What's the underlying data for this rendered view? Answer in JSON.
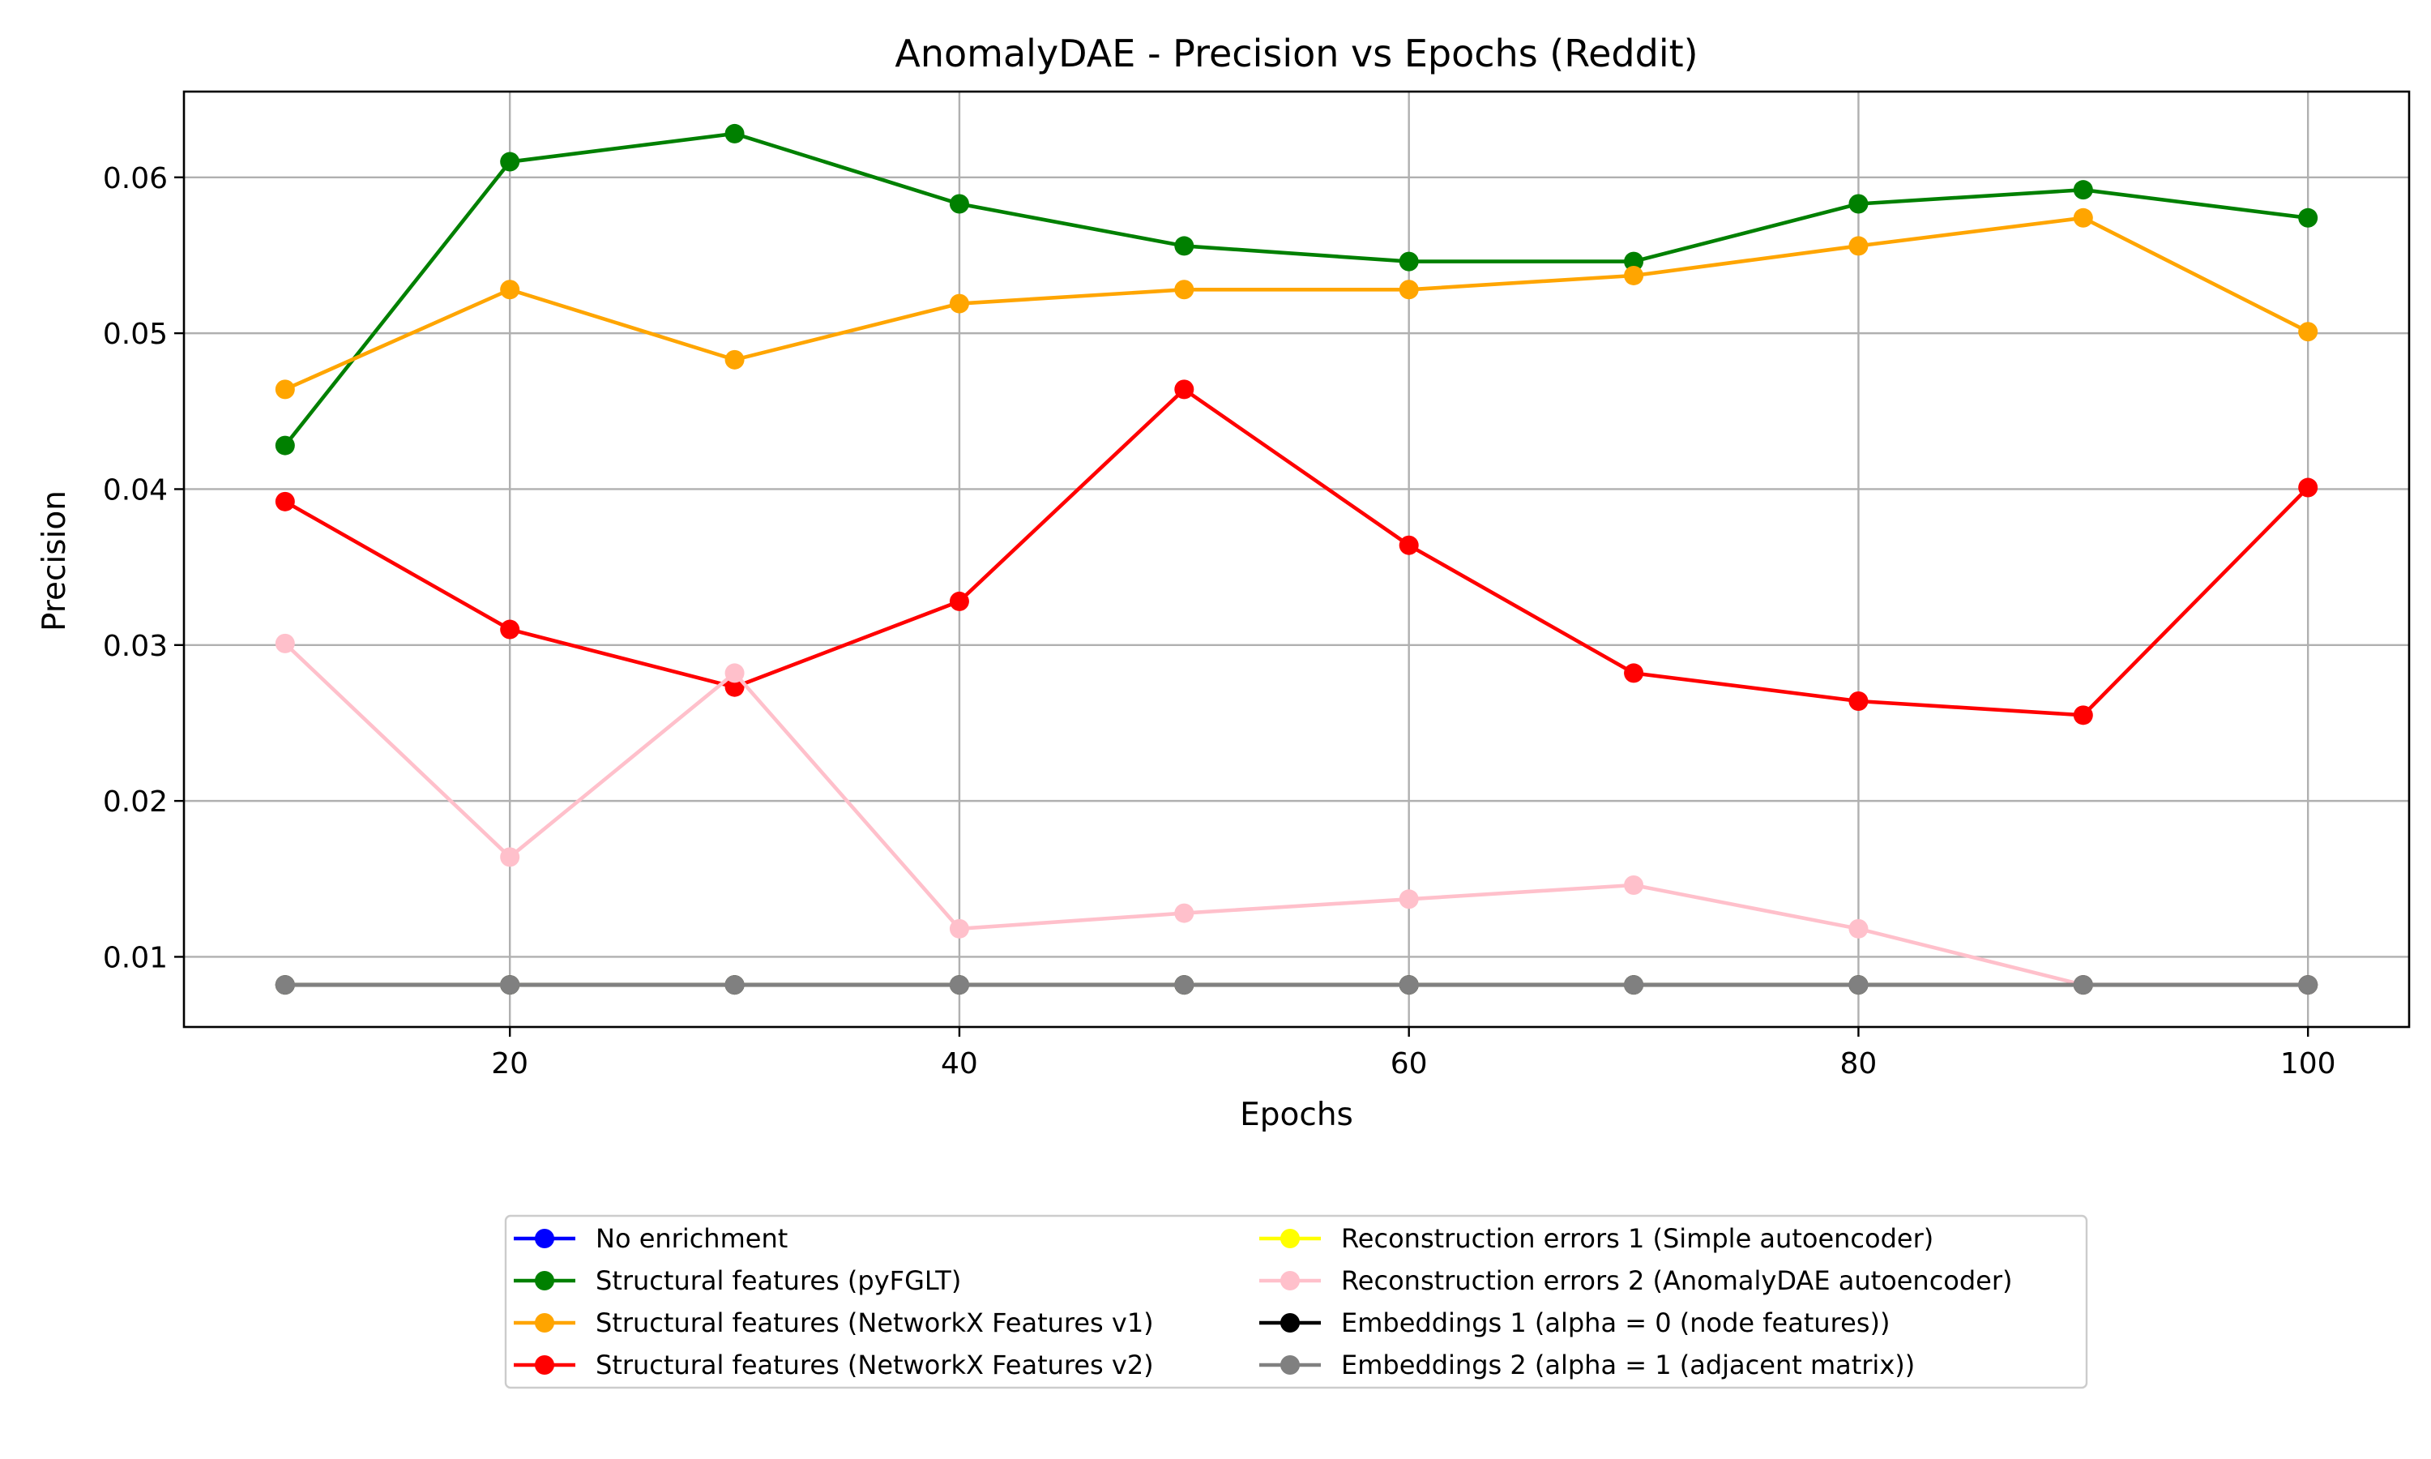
{
  "chart_data": {
    "type": "line",
    "title": "AnomalyDAE - Precision vs Epochs (Reddit)",
    "xlabel": "Epochs",
    "ylabel": "Precision",
    "xlim": [
      5.5,
      104.5
    ],
    "ylim": [
      0.0055,
      0.0655
    ],
    "xticks": [
      20,
      40,
      60,
      80,
      100
    ],
    "yticks": [
      0.01,
      0.02,
      0.03,
      0.04,
      0.05,
      0.06
    ],
    "ytick_labels": [
      "0.01",
      "0.02",
      "0.03",
      "0.04",
      "0.05",
      "0.06"
    ],
    "grid": true,
    "legend_position": "bottom-center",
    "x": [
      10,
      20,
      30,
      40,
      50,
      60,
      70,
      80,
      90,
      100
    ],
    "series": [
      {
        "name": "No enrichment",
        "color": "#0000ff",
        "values": [
          0.0082,
          0.0082,
          0.0082,
          0.0082,
          0.0082,
          0.0082,
          0.0082,
          0.0082,
          0.0082,
          0.0082
        ]
      },
      {
        "name": "Structural features (pyFGLT)",
        "color": "#008000",
        "values": [
          0.0428,
          0.061,
          0.0628,
          0.0583,
          0.0556,
          0.0546,
          0.0546,
          0.0583,
          0.0592,
          0.0574
        ]
      },
      {
        "name": "Structural features (NetworkX Features v1)",
        "color": "#ffa500",
        "values": [
          0.0464,
          0.0528,
          0.0483,
          0.0519,
          0.0528,
          0.0528,
          0.0537,
          0.0556,
          0.0574,
          0.0501
        ]
      },
      {
        "name": "Structural features (NetworkX Features v2)",
        "color": "#ff0000",
        "values": [
          0.0392,
          0.031,
          0.0273,
          0.0328,
          0.0464,
          0.0364,
          0.0282,
          0.0264,
          0.0255,
          0.0401
        ]
      },
      {
        "name": "Reconstruction errors 1 (Simple autoencoder)",
        "color": "#ffff00",
        "values": [
          0.0082,
          0.0082,
          0.0082,
          0.0082,
          0.0082,
          0.0082,
          0.0082,
          0.0082,
          0.0082,
          0.0082
        ]
      },
      {
        "name": "Reconstruction errors 2 (AnomalyDAE autoencoder)",
        "color": "#ffc0cb",
        "values": [
          0.0301,
          0.0164,
          0.0282,
          0.0118,
          0.0128,
          0.0137,
          0.0146,
          0.0118,
          0.0082,
          0.0082
        ]
      },
      {
        "name": "Embeddings 1 (alpha = 0 (node features))",
        "color": "#000000",
        "values": [
          0.0082,
          0.0082,
          0.0082,
          0.0082,
          0.0082,
          0.0082,
          0.0082,
          0.0082,
          0.0082,
          0.0082
        ]
      },
      {
        "name": "Embeddings 2 (alpha = 1 (adjacent matrix))",
        "color": "#808080",
        "values": [
          0.0082,
          0.0082,
          0.0082,
          0.0082,
          0.0082,
          0.0082,
          0.0082,
          0.0082,
          0.0082,
          0.0082
        ]
      }
    ]
  }
}
